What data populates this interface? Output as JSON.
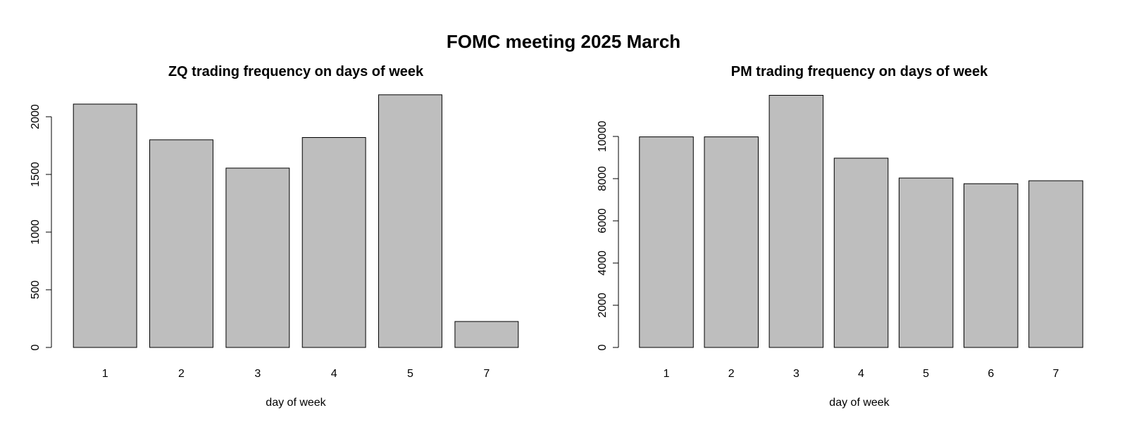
{
  "figure": {
    "title": "FOMC meeting 2025 March"
  },
  "colors": {
    "bar_fill": "#bebebe",
    "bar_stroke": "#000000",
    "axis": "#000000",
    "text": "#000000"
  },
  "chart_data": [
    {
      "type": "bar",
      "title": "ZQ trading frequency on days of week",
      "xlabel": "day of week",
      "ylabel": "",
      "categories": [
        "1",
        "2",
        "3",
        "4",
        "5",
        "7"
      ],
      "values": [
        2110,
        1800,
        1555,
        1820,
        2190,
        225
      ],
      "ylim": [
        0,
        2250
      ],
      "yticks": [
        0,
        500,
        1000,
        1500,
        2000
      ],
      "ytick_labels": [
        "0",
        "500",
        "1000",
        "1500",
        "2000"
      ],
      "grid": false
    },
    {
      "type": "bar",
      "title": "PM trading frequency on days of week",
      "xlabel": "day of week",
      "ylabel": "",
      "categories": [
        "1",
        "2",
        "3",
        "4",
        "5",
        "6",
        "7"
      ],
      "values": [
        9980,
        9980,
        11950,
        8970,
        8030,
        7760,
        7900
      ],
      "ylim": [
        0,
        12300
      ],
      "yticks": [
        0,
        2000,
        4000,
        6000,
        8000,
        10000
      ],
      "ytick_labels": [
        "0",
        "2000",
        "4000",
        "6000",
        "8000",
        "10000"
      ],
      "grid": false
    }
  ]
}
